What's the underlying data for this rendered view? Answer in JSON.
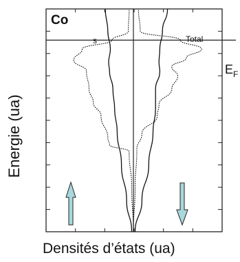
{
  "chart_data": {
    "type": "line",
    "element_label": "Co",
    "xlabel": "Densités d’états (ua)",
    "ylabel": "Energie (ua)",
    "fermi_label_main": "E",
    "fermi_label_sub": "F",
    "series": [
      {
        "name": "s",
        "style": "solid",
        "spin_up": [
          [
            0.02,
            0
          ],
          [
            0.08,
            0.14
          ],
          [
            0.14,
            0.3
          ],
          [
            0.19,
            0.45
          ],
          [
            0.22,
            0.55
          ],
          [
            0.24,
            0.64
          ],
          [
            0.28,
            0.72
          ],
          [
            0.29,
            0.76
          ],
          [
            0.27,
            0.82
          ],
          [
            0.3,
            0.9
          ],
          [
            0.33,
            1.0
          ]
        ],
        "spin_down": [
          [
            0.02,
            0
          ],
          [
            0.1,
            0.14
          ],
          [
            0.18,
            0.3
          ],
          [
            0.23,
            0.45
          ],
          [
            0.26,
            0.55
          ],
          [
            0.26,
            0.64
          ],
          [
            0.31,
            0.72
          ],
          [
            0.3,
            0.76
          ],
          [
            0.31,
            0.82
          ],
          [
            0.34,
            0.9
          ],
          [
            0.4,
            1.0
          ]
        ]
      },
      {
        "name": "Total",
        "style": "dotted",
        "spin_up": [
          [
            0.0,
            0
          ],
          [
            0.02,
            0.2
          ],
          [
            0.05,
            0.36
          ],
          [
            0.28,
            0.39
          ],
          [
            0.3,
            0.42
          ],
          [
            0.38,
            0.52
          ],
          [
            0.47,
            0.58
          ],
          [
            0.52,
            0.64
          ],
          [
            0.55,
            0.72
          ],
          [
            0.7,
            0.77
          ],
          [
            0.6,
            0.82
          ],
          [
            0.25,
            0.86
          ],
          [
            0.06,
            0.9
          ],
          [
            0.05,
            1.0
          ]
        ],
        "spin_down": [
          [
            0.0,
            0
          ],
          [
            0.02,
            0.2
          ],
          [
            0.04,
            0.37
          ],
          [
            0.1,
            0.44
          ],
          [
            0.28,
            0.52
          ],
          [
            0.3,
            0.57
          ],
          [
            0.45,
            0.64
          ],
          [
            0.52,
            0.7
          ],
          [
            0.45,
            0.74
          ],
          [
            0.62,
            0.78
          ],
          [
            0.8,
            0.82
          ],
          [
            0.55,
            0.86
          ],
          [
            0.08,
            0.9
          ],
          [
            0.06,
            1.0
          ]
        ]
      }
    ],
    "fermi_level": 0.86,
    "x_axis": {
      "ticks_labeled": false
    },
    "y_axis": {
      "ticks_labeled": false
    },
    "arrows": [
      {
        "direction": "up",
        "color": "#a9d8dc"
      },
      {
        "direction": "down",
        "color": "#a9d8dc"
      }
    ],
    "grid": false
  }
}
